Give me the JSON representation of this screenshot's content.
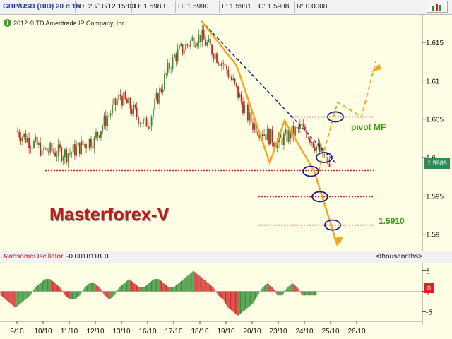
{
  "header": {
    "symbol": "GBP/USD (BID) 20 d 1h",
    "date": "D: 23/10/12 15:00",
    "open": "O: 1.5983",
    "high": "H: 1.5990",
    "low": "L: 1.5981",
    "close": "C: 1.5988",
    "range": "R: 0.0008"
  },
  "copyright": "2012 © TD Ameritrade IP Company, Inc.",
  "brand": "Masterforex-V",
  "annotations": {
    "pivot_label": "pivot MF",
    "level_label": "1.5910"
  },
  "price_badge": "1.5988",
  "oscillator": {
    "name": "AwesomeOscillator",
    "value": "-0.0018118",
    "extra": "0",
    "units": "<thousandths>",
    "badge": "0"
  },
  "colors": {
    "up": "#2E8B2E",
    "down": "#D02020",
    "orange": "#F5A623",
    "navy": "#1A237E",
    "red_level": "#E02020",
    "ellipse": "#1A237E"
  },
  "chart_data": [
    {
      "type": "candlestick",
      "x": [
        "9/10",
        "10/10",
        "11/10",
        "12/10",
        "13/10",
        "16/10",
        "17/10",
        "18/10",
        "19/10",
        "20/10",
        "23/10",
        "24/10",
        "25/10",
        "26/10"
      ],
      "ticks_y": [
        "1.615",
        "1.61",
        "1.605",
        "1.6",
        "1.595",
        "1.59"
      ],
      "ylim": [
        1.5885,
        1.6185
      ],
      "series": [
        {
          "day": 0,
          "open": 1.6035,
          "high": 1.606,
          "low": 1.6,
          "close": 1.601
        },
        {
          "day": 1,
          "open": 1.601,
          "high": 1.603,
          "low": 1.598,
          "close": 1.6005
        },
        {
          "day": 2,
          "open": 1.6005,
          "high": 1.604,
          "low": 1.5995,
          "close": 1.6025
        },
        {
          "day": 3,
          "open": 1.6025,
          "high": 1.61,
          "low": 1.6015,
          "close": 1.608
        },
        {
          "day": 4,
          "open": 1.608,
          "high": 1.609,
          "low": 1.603,
          "close": 1.604
        },
        {
          "day": 5,
          "open": 1.604,
          "high": 1.614,
          "low": 1.6035,
          "close": 1.613
        },
        {
          "day": 6,
          "open": 1.613,
          "high": 1.6175,
          "low": 1.611,
          "close": 1.616
        },
        {
          "day": 7,
          "open": 1.616,
          "high": 1.6175,
          "low": 1.61,
          "close": 1.612
        },
        {
          "day": 8,
          "open": 1.612,
          "high": 1.613,
          "low": 1.602,
          "close": 1.6045
        },
        {
          "day": 9,
          "open": 1.6045,
          "high": 1.6055,
          "low": 1.5995,
          "close": 1.602
        },
        {
          "day": 10,
          "open": 1.602,
          "high": 1.6055,
          "low": 1.6,
          "close": 1.604
        },
        {
          "day": 11,
          "open": 1.604,
          "high": 1.6045,
          "low": 1.599,
          "close": 1.5988
        }
      ]
    },
    {
      "type": "bar",
      "title": "AwesomeOscillator",
      "ticks_y": [
        "5",
        "0",
        "-5"
      ],
      "ylim": [
        -7,
        7
      ],
      "values": [
        -1,
        -2,
        -3,
        -4,
        -3,
        -2,
        -1,
        1,
        2,
        3,
        3,
        2,
        1,
        -1,
        -2,
        -2,
        -1,
        1,
        2,
        2,
        1,
        -1,
        -2,
        -1,
        1,
        2,
        3,
        2,
        1,
        1,
        2,
        3,
        3,
        2,
        1,
        1,
        2,
        3,
        4,
        5,
        4,
        3,
        2,
        1,
        -1,
        -2,
        -4,
        -5,
        -6,
        -5,
        -4,
        -3,
        -1,
        1,
        2,
        1,
        -1,
        -1,
        1,
        2,
        1,
        -1,
        -1,
        -1
      ]
    }
  ]
}
